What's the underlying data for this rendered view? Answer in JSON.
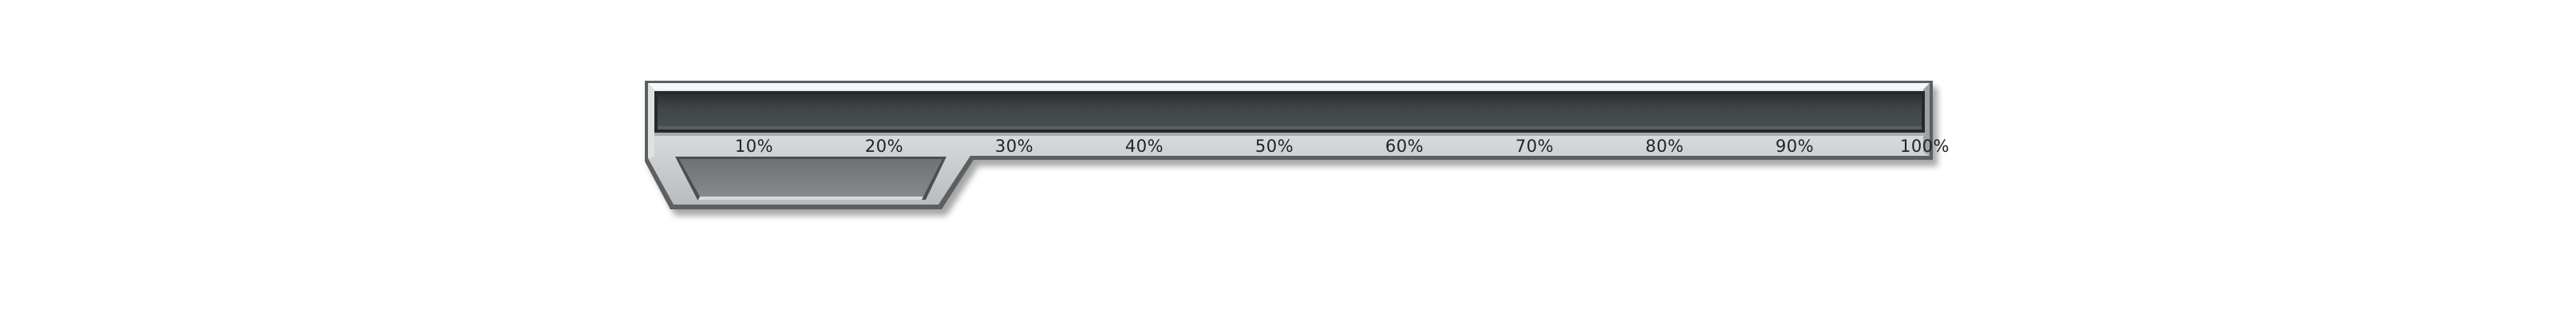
{
  "progress_bar": {
    "value_fraction": 0.0,
    "scale_labels": [
      "10%",
      "20%",
      "30%",
      "40%",
      "50%",
      "60%",
      "70%",
      "80%",
      "90%",
      "100%"
    ]
  },
  "colors": {
    "frame_light": "#e8eaeb",
    "frame_mid": "#c9cbcc",
    "frame_dark": "#5c6164",
    "trough": "#3b4043",
    "tab_inset": "#787c7f",
    "fill_color": "#7fd04a",
    "tick_text": "#1c2226"
  },
  "icons": {
    "tab": "trapezoid-tab-icon"
  }
}
